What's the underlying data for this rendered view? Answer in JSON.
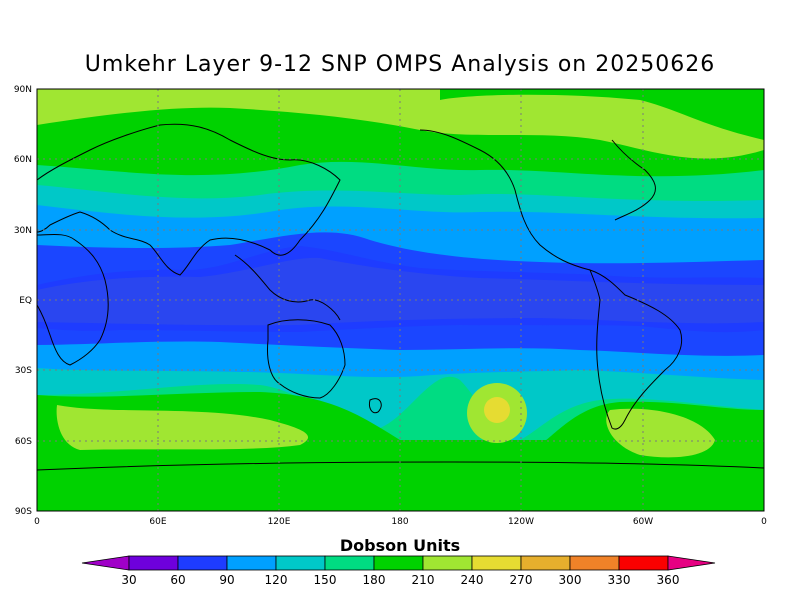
{
  "title": "Umkehr Layer 9-12 SNP OMPS Analysis on 20250626",
  "map": {
    "projection": "equirectangular",
    "lat_ticks": [
      "90N",
      "60N",
      "30N",
      "EQ",
      "30S",
      "60S",
      "90S"
    ],
    "lon_ticks": [
      "0",
      "60E",
      "120E",
      "180",
      "120W",
      "60W",
      "0"
    ],
    "grid": "dotted"
  },
  "colorbar": {
    "title": "Dobson Units",
    "levels": [
      "30",
      "60",
      "90",
      "120",
      "150",
      "180",
      "210",
      "240",
      "270",
      "300",
      "330",
      "360"
    ],
    "colors": [
      "#a000c8",
      "#6e00dc",
      "#1e3cff",
      "#00a0ff",
      "#00c8c8",
      "#00dc82",
      "#00d200",
      "#a0e632",
      "#e6dc32",
      "#e6af2d",
      "#f08228",
      "#fa0000",
      "#e60082"
    ]
  },
  "chart_data": {
    "type": "heatmap",
    "title": "Umkehr Layer 9-12 SNP OMPS Analysis on 20250626",
    "xlabel": "",
    "ylabel": "",
    "x_range": [
      0,
      360
    ],
    "y_range": [
      -90,
      90
    ],
    "units": "Dobson Units",
    "zonal_bands": [
      {
        "lat": [
          -90,
          -65
        ],
        "value_range": [
          210,
          240
        ]
      },
      {
        "lat": [
          -65,
          -45
        ],
        "value_range": [
          180,
          240
        ]
      },
      {
        "lat": [
          -45,
          -30
        ],
        "value_range": [
          150,
          180
        ]
      },
      {
        "lat": [
          -30,
          -15
        ],
        "value_range": [
          90,
          150
        ]
      },
      {
        "lat": [
          -15,
          15
        ],
        "value_range": [
          60,
          90
        ]
      },
      {
        "lat": [
          15,
          35
        ],
        "value_range": [
          90,
          120
        ]
      },
      {
        "lat": [
          35,
          55
        ],
        "value_range": [
          150,
          210
        ]
      },
      {
        "lat": [
          55,
          90
        ],
        "value_range": [
          210,
          240
        ]
      }
    ],
    "features": [
      {
        "name": "local maximum",
        "lon": 231,
        "lat": -47,
        "value_range": [
          240,
          270
        ]
      }
    ]
  }
}
